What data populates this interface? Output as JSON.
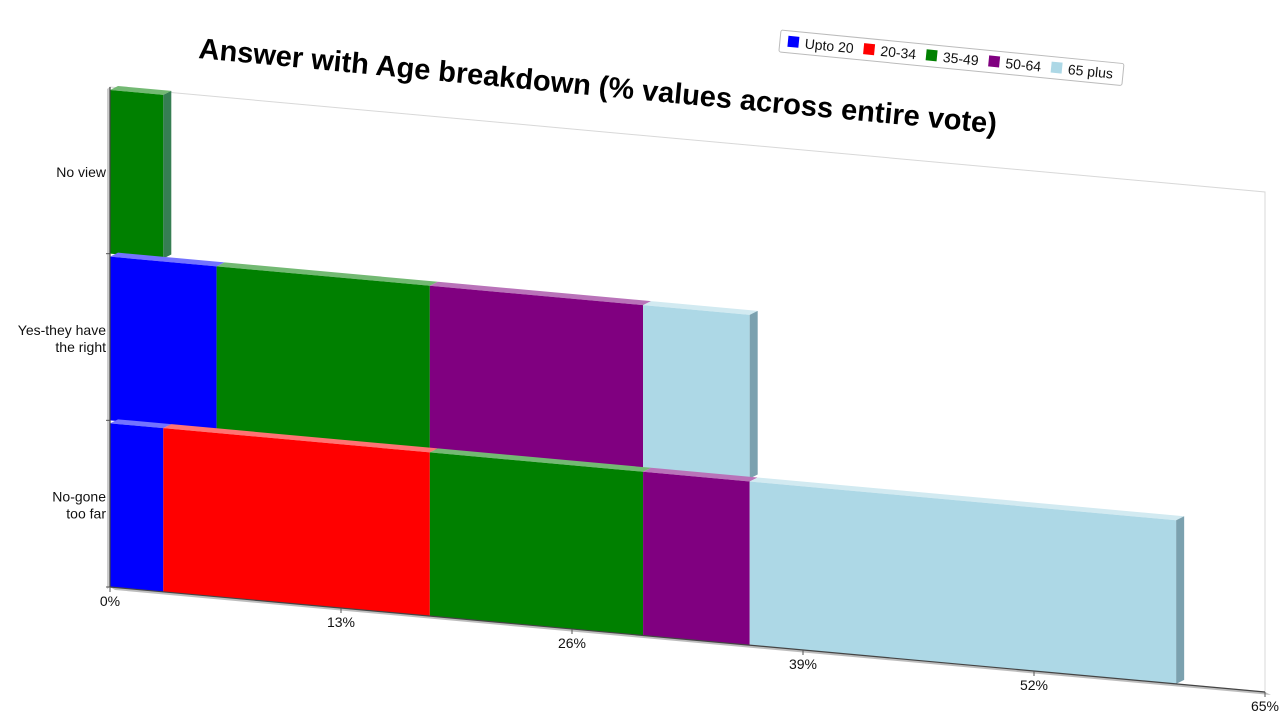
{
  "chart_data": {
    "type": "bar",
    "orientation": "horizontal",
    "stacked": true,
    "title": "Answer with Age breakdown (% values across entire vote)",
    "categories": [
      [
        "No view"
      ],
      [
        "Yes-they have",
        "the right"
      ],
      [
        "No-gone",
        "too far"
      ]
    ],
    "series": [
      {
        "name": "Upto 20",
        "color": "#0000ff",
        "values": [
          0,
          6,
          3
        ]
      },
      {
        "name": "20-34",
        "color": "#ff0000",
        "values": [
          0,
          0,
          15
        ]
      },
      {
        "name": "35-49",
        "color": "#008000",
        "values": [
          3,
          12,
          12
        ]
      },
      {
        "name": "50-64",
        "color": "#800080",
        "values": [
          0,
          12,
          6
        ]
      },
      {
        "name": "65 plus",
        "color": "#add8e6",
        "values": [
          0,
          6,
          24
        ]
      }
    ],
    "xlim": [
      0,
      65
    ],
    "x_ticks": [
      "0%",
      "13%",
      "26%",
      "39%",
      "52%",
      "65%"
    ],
    "legend_position": "top-right",
    "grid": false
  }
}
